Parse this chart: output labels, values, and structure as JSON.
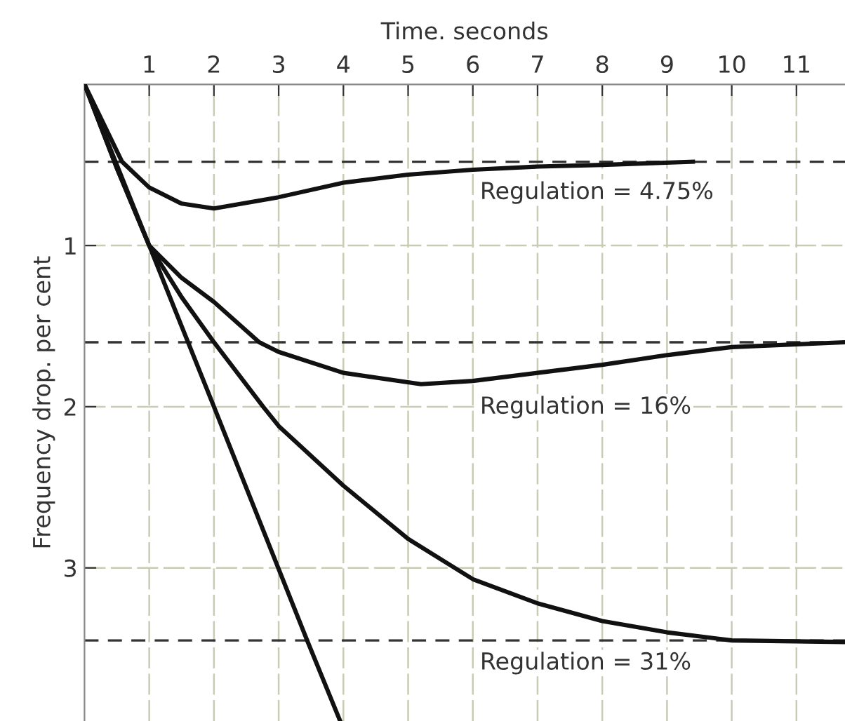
{
  "chart_data": {
    "type": "line",
    "xlabel": "Time. seconds",
    "ylabel": "Frequency drop. per cent",
    "xlim": [
      0,
      11.75
    ],
    "xticks": [
      1,
      2,
      3,
      4,
      5,
      6,
      7,
      8,
      9,
      10,
      11
    ],
    "ylim": [
      3.95,
      0
    ],
    "yticks": [
      1,
      2,
      3
    ],
    "grid": true,
    "line_style": "solid",
    "marker": "none",
    "series": [
      {
        "color": "#111111",
        "x": [
          0,
          0.58,
          1,
          1.5,
          2,
          3,
          4,
          5,
          6,
          7,
          8,
          9.4
        ],
        "values": [
          0,
          0.48,
          0.64,
          0.74,
          0.77,
          0.7,
          0.61,
          0.56,
          0.53,
          0.51,
          0.5,
          0.48
        ]
      },
      {
        "color": "#111111",
        "x": [
          0,
          0.5,
          1,
          1.5,
          2,
          2.7,
          3,
          4,
          5.2,
          6,
          7,
          8,
          9,
          10,
          11.75
        ],
        "values": [
          0,
          0.52,
          1.0,
          1.2,
          1.35,
          1.6,
          1.66,
          1.79,
          1.86,
          1.84,
          1.79,
          1.74,
          1.68,
          1.63,
          1.6
        ]
      },
      {
        "color": "#111111",
        "x": [
          0,
          0.5,
          1,
          1.5,
          2,
          2.76,
          3,
          4,
          5,
          6,
          7,
          8,
          9,
          10,
          11.75
        ],
        "values": [
          0,
          0.52,
          1.0,
          1.32,
          1.6,
          2.0,
          2.12,
          2.49,
          2.82,
          3.07,
          3.22,
          3.33,
          3.4,
          3.45,
          3.46
        ]
      },
      {
        "color": "#111111",
        "x": [
          0,
          1,
          2,
          3.44,
          3.95
        ],
        "values": [
          0,
          1.0,
          2.0,
          3.45,
          3.95
        ]
      }
    ],
    "ref_lines": [
      {
        "axis": "y",
        "value": 0.48,
        "color": "#333333",
        "line_style": "dashed"
      },
      {
        "axis": "y",
        "value": 1.6,
        "color": "#333333",
        "line_style": "dashed"
      },
      {
        "axis": "y",
        "value": 3.45,
        "color": "#333333",
        "line_style": "dashed"
      }
    ],
    "annotations": [
      "Regulation = 4.75%",
      "Regulation = 16%",
      "Regulation = 31%"
    ]
  }
}
